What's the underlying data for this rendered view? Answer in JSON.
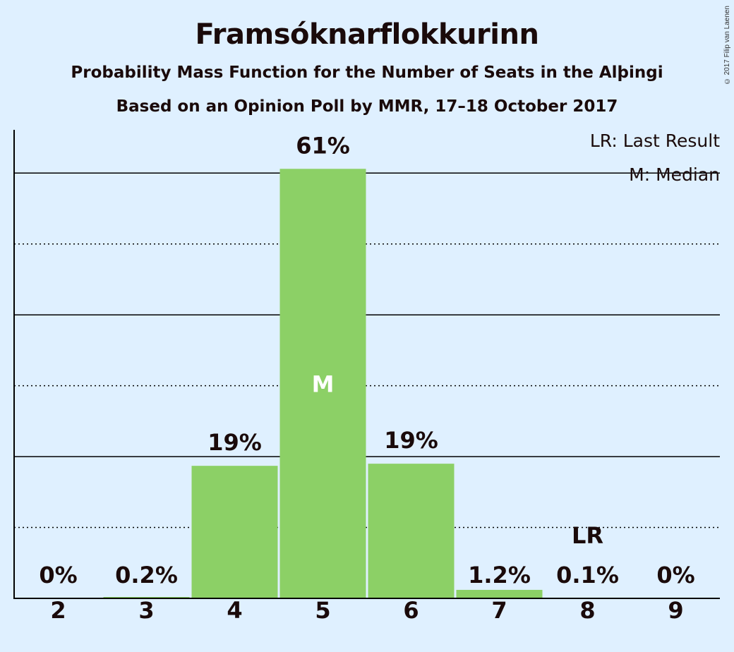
{
  "title": "Framsóknarflokkurinn",
  "subtitle1": "Probability Mass Function for the Number of Seats in the Alþingi",
  "subtitle2": "Based on an Opinion Poll by MMR, 17–18 October 2017",
  "copyright": "© 2017 Filip van Laenen",
  "colors": {
    "background": "#dff0ff",
    "bar": "#8cd066",
    "text": "#1a0a0a",
    "median_label": "#ffffff"
  },
  "chart_data": {
    "type": "bar",
    "categories": [
      "2",
      "3",
      "4",
      "5",
      "6",
      "7",
      "8",
      "9"
    ],
    "values": [
      0,
      0.2,
      18.7,
      60.6,
      19.0,
      1.2,
      0.1,
      0
    ],
    "data_labels": [
      "0%",
      "0.2%",
      "19%",
      "61%",
      "19%",
      "1.2%",
      "0.1%",
      "0%"
    ],
    "ylim": [
      0,
      66.5
    ],
    "gridlines": [
      {
        "value": 10,
        "style": "dotted"
      },
      {
        "value": 20,
        "style": "solid"
      },
      {
        "value": 30,
        "style": "dotted"
      },
      {
        "value": 40,
        "style": "solid"
      },
      {
        "value": 50,
        "style": "dotted"
      },
      {
        "value": 60,
        "style": "solid"
      }
    ],
    "median_category": "5",
    "median_marker": "M",
    "last_result_category": "8",
    "last_result_marker": "LR",
    "legend": [
      "LR: Last Result",
      "M: Median"
    ],
    "legend_position": "top-right",
    "title": "Framsóknarflokkurinn",
    "xlabel": "",
    "ylabel": ""
  }
}
